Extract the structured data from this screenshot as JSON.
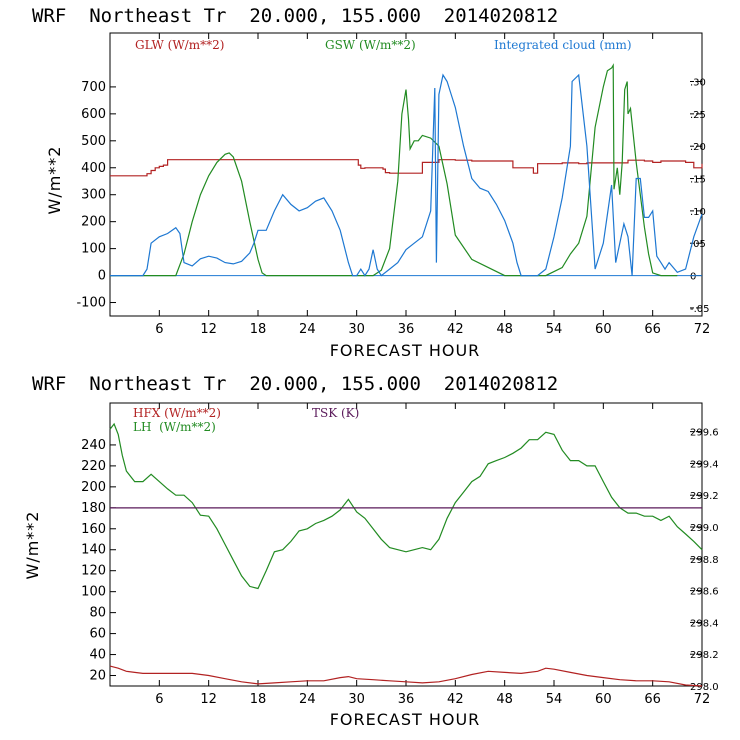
{
  "panels": [
    {
      "title": "WRF  Northeast Tr  20.000, 155.000  2014020812",
      "xlabel": "FORECAST HOUR",
      "ylabel": "W/m**2",
      "xticks": [
        6,
        12,
        18,
        24,
        30,
        36,
        42,
        48,
        54,
        60,
        66,
        72
      ],
      "yticks_left": [
        -100,
        0,
        100,
        200,
        300,
        400,
        500,
        600,
        700
      ],
      "yticks_right": [
        -0.05,
        0,
        0.05,
        0.1,
        0.15,
        0.2,
        0.25,
        0.3
      ],
      "yticks_right_labels": [
        "-.05",
        "0",
        ".05",
        ".10",
        ".15",
        ".20",
        ".25",
        ".30"
      ],
      "legend": [
        {
          "text": "GLW (W/m**2)",
          "color": "#b22222"
        },
        {
          "text": "GSW (W/m**2)",
          "color": "#228b22"
        },
        {
          "text": "Integrated cloud (mm)",
          "color": "#1e78d2"
        }
      ]
    },
    {
      "title": "WRF  Northeast Tr  20.000, 155.000  2014020812",
      "xlabel": "FORECAST HOUR",
      "ylabel": "W/m**2",
      "xticks": [
        6,
        12,
        18,
        24,
        30,
        36,
        42,
        48,
        54,
        60,
        66,
        72
      ],
      "yticks_left": [
        20,
        40,
        60,
        80,
        100,
        120,
        140,
        160,
        180,
        200,
        220,
        240
      ],
      "yticks_right": [
        298.0,
        298.2,
        298.4,
        298.6,
        298.8,
        299.0,
        299.2,
        299.4,
        299.6
      ],
      "yticks_right_labels": [
        "298.0",
        "298.2",
        "298.4",
        "298.6",
        "298.8",
        "299.0",
        "299.2",
        "299.4",
        "299.6"
      ],
      "legend": [
        {
          "text": "HFX (W/m**2)",
          "color": "#b22222"
        },
        {
          "text": "LH  (W/m**2)",
          "color": "#228b22"
        },
        {
          "text": "TSK (K)",
          "color": "#5a1a5a"
        }
      ]
    }
  ],
  "chart_data": [
    {
      "type": "line",
      "title": "WRF  Northeast Tr  20.000, 155.000  2014020812",
      "xlabel": "FORECAST HOUR",
      "ylabel": "W/m**2",
      "xlim": [
        0,
        72
      ],
      "ylim": [
        -150,
        900
      ],
      "y2lim": [
        -0.0625,
        0.375
      ],
      "series": [
        {
          "name": "GLW (W/m**2)",
          "axis": "left",
          "color": "#b22222",
          "step": true,
          "x": [
            0,
            4,
            4.5,
            5,
            5.5,
            6,
            6.5,
            7,
            8,
            30,
            30.2,
            30.5,
            31,
            33,
            33.2,
            33.5,
            34,
            36,
            38,
            40,
            42,
            44,
            48,
            49,
            51,
            51.5,
            52,
            55,
            57,
            58,
            62,
            63,
            65,
            66,
            67,
            70,
            71,
            72,
            72.2
          ],
          "y": [
            370,
            370,
            378,
            390,
            400,
            405,
            410,
            430,
            430,
            430,
            410,
            398,
            400,
            400,
            395,
            382,
            380,
            380,
            420,
            430,
            428,
            425,
            425,
            400,
            400,
            380,
            415,
            418,
            415,
            418,
            418,
            428,
            425,
            420,
            425,
            420,
            400,
            400,
            415
          ]
        },
        {
          "name": "GSW (W/m**2)",
          "axis": "left",
          "color": "#228b22",
          "x": [
            0,
            8,
            9,
            10,
            11,
            12,
            13,
            14,
            14.5,
            15,
            16,
            17,
            18,
            18.5,
            19,
            32,
            33,
            34,
            35,
            35.5,
            36,
            36.3,
            36.5,
            37,
            37.5,
            38,
            39,
            40,
            41,
            42,
            44,
            48,
            53,
            55,
            56,
            57,
            58,
            59,
            60,
            60.5,
            61,
            61.2,
            61.3,
            61.7,
            62,
            62.3,
            62.6,
            62.9,
            63,
            63.3,
            64,
            65,
            65.5,
            66,
            67,
            68,
            69
          ],
          "y": [
            0,
            0,
            80,
            200,
            300,
            370,
            420,
            450,
            455,
            440,
            350,
            200,
            60,
            10,
            0,
            0,
            20,
            100,
            350,
            600,
            690,
            580,
            470,
            500,
            500,
            520,
            510,
            480,
            340,
            150,
            60,
            0,
            0,
            30,
            80,
            120,
            220,
            550,
            700,
            760,
            770,
            780,
            320,
            400,
            300,
            420,
            690,
            720,
            600,
            620,
            420,
            180,
            80,
            10,
            0,
            0,
            0
          ]
        },
        {
          "name": "Integrated cloud (mm)",
          "axis": "right",
          "color": "#1e78d2",
          "x": [
            0,
            4,
            4.5,
            5,
            6,
            7,
            8,
            8.5,
            9,
            10,
            11,
            12,
            13,
            14,
            15,
            16,
            17,
            17.5,
            18,
            19,
            20,
            21,
            22,
            23,
            24,
            25,
            26,
            27,
            28,
            29,
            29.5,
            30,
            30.5,
            31,
            31.5,
            32,
            32.5,
            33,
            34,
            35,
            36,
            37,
            38,
            39,
            39.5,
            39.7,
            40,
            40.5,
            41,
            41.5,
            42,
            43,
            44,
            45,
            46,
            47,
            48,
            49,
            49.5,
            50,
            52,
            53,
            54,
            55,
            56,
            56.2,
            57,
            58,
            59,
            60,
            61,
            61.5,
            62,
            62.5,
            63,
            63.5,
            64,
            64.5,
            65,
            65.5,
            66,
            66.5,
            67,
            67.5,
            68,
            69,
            70,
            71,
            72
          ],
          "y": [
            0,
            0,
            0.01,
            0.05,
            0.06,
            0.065,
            0.074,
            0.065,
            0.02,
            0.015,
            0.026,
            0.03,
            0.027,
            0.02,
            0.018,
            0.022,
            0.035,
            0.05,
            0.07,
            0.07,
            0.1,
            0.125,
            0.11,
            0.1,
            0.105,
            0.115,
            0.12,
            0.1,
            0.07,
            0.02,
            0,
            0,
            0.01,
            0.0,
            0.01,
            0.04,
            0.01,
            0.0,
            0.01,
            0.02,
            0.04,
            0.05,
            0.06,
            0.1,
            0.29,
            0.02,
            0.28,
            0.31,
            0.3,
            0.28,
            0.26,
            0.2,
            0.15,
            0.135,
            0.13,
            0.11,
            0.085,
            0.05,
            0.02,
            0,
            0,
            0.01,
            0.06,
            0.12,
            0.2,
            0.3,
            0.31,
            0.2,
            0.01,
            0.05,
            0.14,
            0.02,
            0.05,
            0.08,
            0.06,
            0.0,
            0.15,
            0.15,
            0.09,
            0.09,
            0.1,
            0.03,
            0.02,
            0.01,
            0.02,
            0.005,
            0.01,
            0.06,
            0.095
          ]
        }
      ]
    },
    {
      "type": "line",
      "title": "WRF  Northeast Tr  20.000, 155.000  2014020812",
      "xlabel": "FORECAST HOUR",
      "ylabel": "W/m**2",
      "xlim": [
        0,
        72
      ],
      "ylim": [
        10,
        280
      ],
      "y2lim": [
        298.0,
        299.78
      ],
      "series": [
        {
          "name": "HFX (W/m**2)",
          "axis": "left",
          "color": "#b22222",
          "x": [
            0,
            1,
            2,
            3,
            4,
            6,
            8,
            10,
            12,
            14,
            16,
            18,
            20,
            22,
            24,
            26,
            28,
            29,
            30,
            32,
            34,
            36,
            38,
            40,
            42,
            44,
            46,
            48,
            50,
            52,
            53,
            54,
            56,
            58,
            60,
            62,
            64,
            66,
            68,
            70,
            72
          ],
          "y": [
            29,
            27,
            24,
            23,
            22,
            22,
            22,
            22,
            20,
            17,
            14,
            12,
            13,
            14,
            15,
            15,
            18,
            19,
            17,
            16,
            15,
            14,
            13,
            14,
            17,
            21,
            24,
            23,
            22,
            24,
            27,
            26,
            23,
            20,
            18,
            16,
            15,
            15,
            14,
            11,
            7
          ]
        },
        {
          "name": "LH  (W/m**2)",
          "axis": "left",
          "color": "#228b22",
          "x": [
            0,
            0.5,
            1,
            1.5,
            2,
            3,
            4,
            5,
            6,
            7,
            8,
            9,
            10,
            11,
            12,
            13,
            14,
            15,
            16,
            17,
            18,
            19,
            20,
            21,
            22,
            23,
            24,
            25,
            26,
            27,
            28,
            29,
            30,
            31,
            32,
            33,
            34,
            35,
            36,
            37,
            38,
            39,
            40,
            41,
            42,
            43,
            44,
            45,
            46,
            47,
            48,
            49,
            50,
            51,
            52,
            53,
            54,
            55,
            56,
            57,
            58,
            59,
            60,
            61,
            62,
            63,
            64,
            65,
            66,
            67,
            68,
            69,
            70,
            71,
            72
          ],
          "y": [
            255,
            260,
            250,
            230,
            215,
            205,
            205,
            212,
            205,
            198,
            192,
            192,
            185,
            173,
            172,
            160,
            145,
            130,
            115,
            105,
            103,
            120,
            138,
            140,
            148,
            158,
            160,
            165,
            168,
            172,
            178,
            188,
            176,
            170,
            160,
            150,
            142,
            140,
            138,
            140,
            142,
            140,
            150,
            170,
            185,
            195,
            205,
            210,
            222,
            225,
            228,
            232,
            237,
            245,
            245,
            252,
            250,
            235,
            225,
            225,
            220,
            220,
            205,
            190,
            180,
            175,
            175,
            172,
            172,
            168,
            172,
            162,
            155,
            148,
            140
          ]
        },
        {
          "name": "TSK (K)",
          "axis": "right",
          "color": "#5a1a5a",
          "x": [
            0,
            72
          ],
          "y": [
            299.12,
            299.12
          ]
        }
      ]
    }
  ]
}
